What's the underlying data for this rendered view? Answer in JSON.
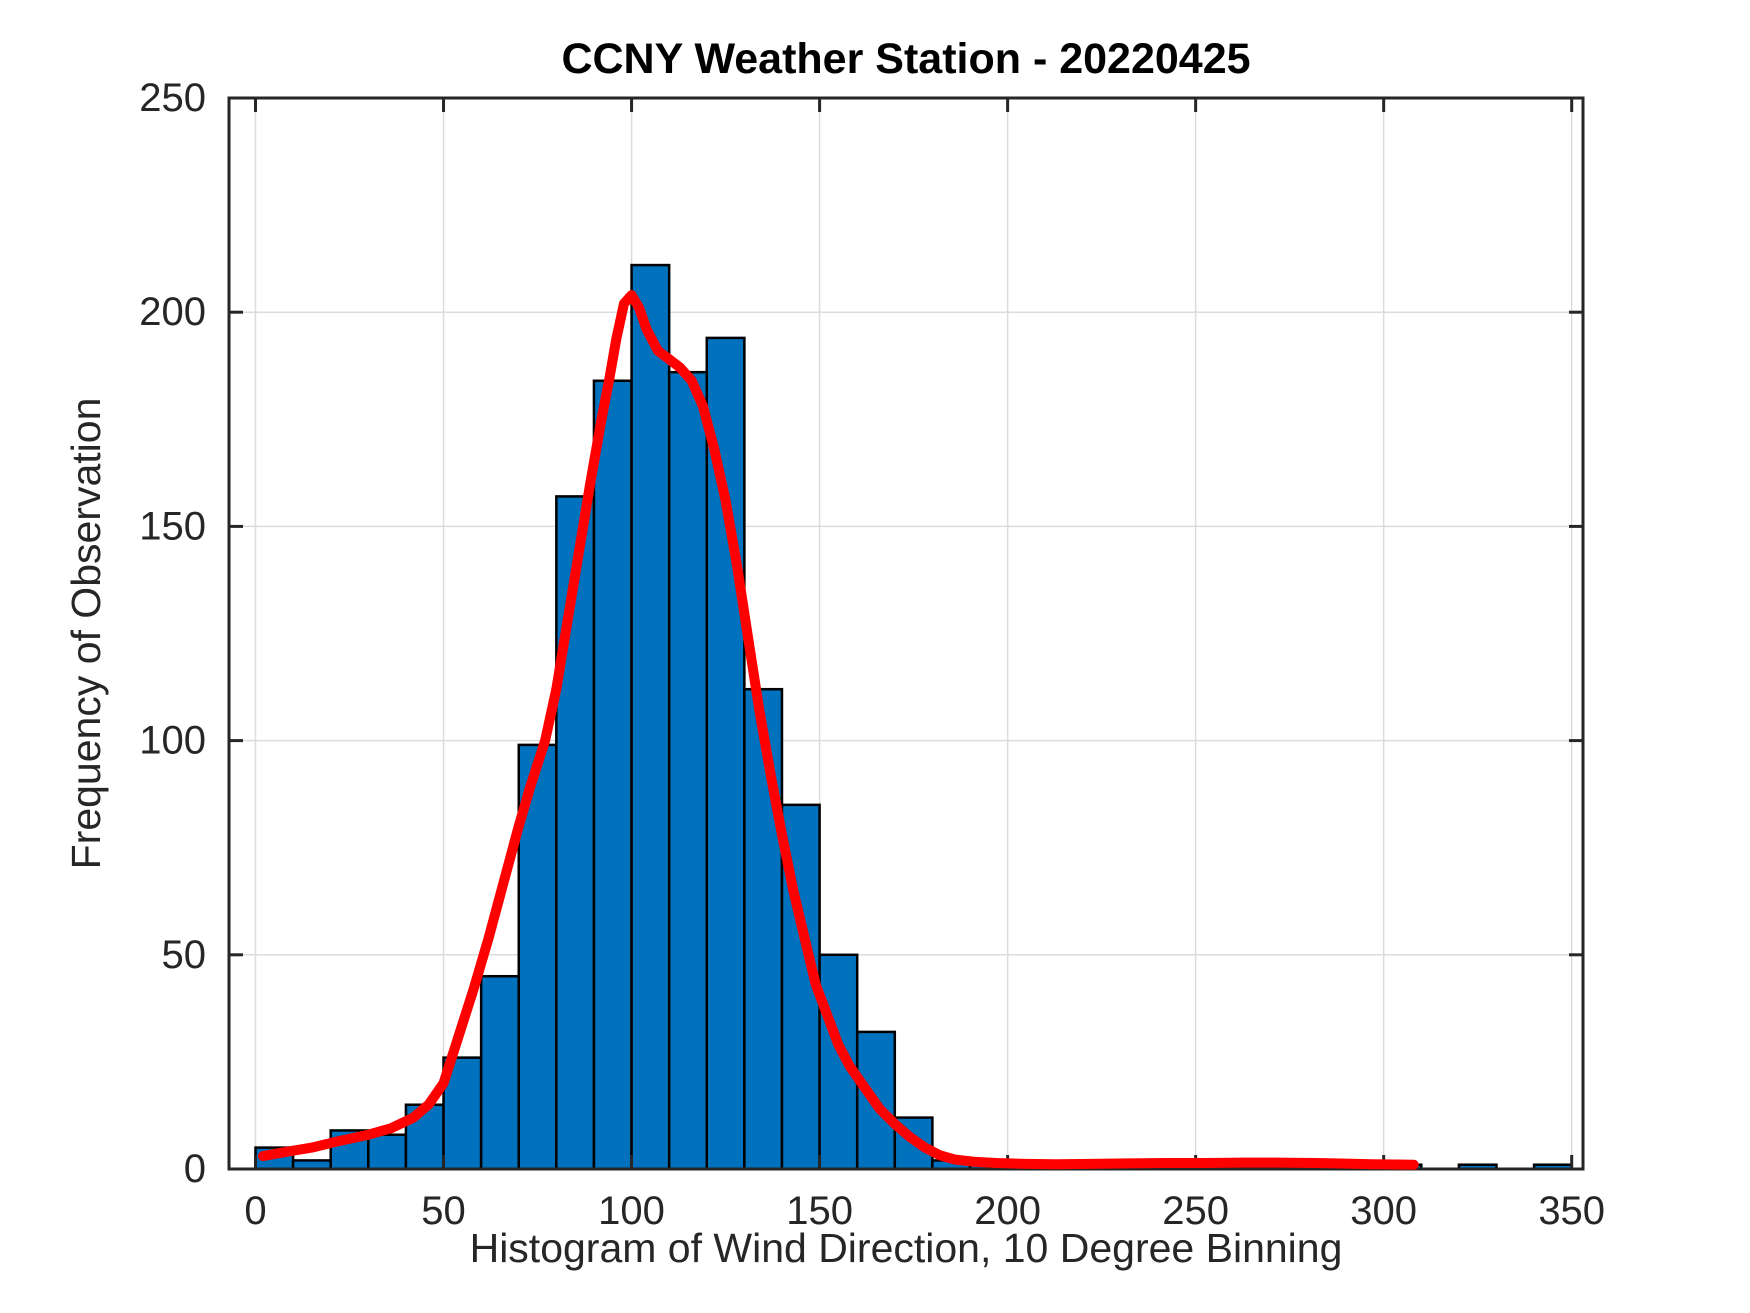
{
  "chart_data": {
    "type": "bar",
    "title": "CCNY Weather Station - 20220425",
    "xlabel": "Histogram of Wind Direction, 10 Degree Binning",
    "ylabel": "Frequency of Observation",
    "bin_width_deg": 10,
    "categories": [
      "0-10",
      "10-20",
      "20-30",
      "30-40",
      "40-50",
      "50-60",
      "60-70",
      "70-80",
      "80-90",
      "90-100",
      "100-110",
      "110-120",
      "120-130",
      "130-140",
      "140-150",
      "150-160",
      "160-170",
      "170-180",
      "180-190",
      "190-200",
      "200-210",
      "210-220",
      "220-230",
      "230-240",
      "240-250",
      "250-260",
      "260-270",
      "270-280",
      "280-290",
      "290-300",
      "300-310",
      "310-320",
      "320-330",
      "330-340",
      "340-350"
    ],
    "values": [
      5,
      2,
      9,
      8,
      15,
      26,
      45,
      99,
      157,
      184,
      211,
      186,
      194,
      112,
      85,
      50,
      32,
      12,
      2,
      1,
      1,
      1,
      1,
      1,
      1,
      1,
      1,
      2,
      1,
      1,
      1,
      0,
      1,
      0,
      1
    ],
    "xlim": [
      -7,
      353.3
    ],
    "ylim": [
      0,
      250
    ],
    "xticks": [
      0,
      50,
      100,
      150,
      200,
      250,
      300,
      350
    ],
    "yticks": [
      0,
      50,
      100,
      150,
      200,
      250
    ],
    "grid": true,
    "legend": false,
    "bar_color": "#0072BD",
    "bar_edge_color": "#000000",
    "grid_color": "#dcdcdc",
    "axis_color": "#262626",
    "background_color": "#ffffff",
    "fit_curve": {
      "name": "distribution-fit-line",
      "color": "#ff0000",
      "points": [
        [
          2,
          3
        ],
        [
          8,
          4
        ],
        [
          15,
          5
        ],
        [
          22,
          6.5
        ],
        [
          30,
          8
        ],
        [
          36,
          9.5
        ],
        [
          42,
          12
        ],
        [
          46,
          15
        ],
        [
          50,
          20
        ],
        [
          54,
          31
        ],
        [
          58,
          42
        ],
        [
          62,
          54
        ],
        [
          66,
          67
        ],
        [
          70,
          80
        ],
        [
          73,
          89
        ],
        [
          77,
          100
        ],
        [
          80,
          112
        ],
        [
          83,
          128
        ],
        [
          86,
          144
        ],
        [
          89,
          160
        ],
        [
          92,
          175
        ],
        [
          94,
          184
        ],
        [
          96,
          194
        ],
        [
          98,
          202
        ],
        [
          100,
          204
        ],
        [
          102,
          201
        ],
        [
          104,
          196
        ],
        [
          107,
          191
        ],
        [
          110,
          189
        ],
        [
          113,
          187
        ],
        [
          116,
          184
        ],
        [
          119,
          178
        ],
        [
          122,
          168
        ],
        [
          125,
          156
        ],
        [
          128,
          141
        ],
        [
          131,
          124
        ],
        [
          134,
          107
        ],
        [
          137,
          92
        ],
        [
          140,
          78
        ],
        [
          143,
          65
        ],
        [
          146,
          54
        ],
        [
          149,
          43
        ],
        [
          152,
          36
        ],
        [
          155,
          29
        ],
        [
          158,
          24
        ],
        [
          162,
          19
        ],
        [
          166,
          14
        ],
        [
          170,
          10.5
        ],
        [
          174,
          7.5
        ],
        [
          178,
          5
        ],
        [
          182,
          3.2
        ],
        [
          186,
          2.2
        ],
        [
          191,
          1.7
        ],
        [
          197,
          1.4
        ],
        [
          205,
          1.2
        ],
        [
          213,
          1.1
        ],
        [
          222,
          1.2
        ],
        [
          232,
          1.3
        ],
        [
          242,
          1.4
        ],
        [
          252,
          1.4
        ],
        [
          262,
          1.5
        ],
        [
          272,
          1.5
        ],
        [
          282,
          1.4
        ],
        [
          290,
          1.25
        ],
        [
          297,
          1.1
        ],
        [
          303,
          1.05
        ],
        [
          308,
          1.0
        ]
      ]
    }
  }
}
